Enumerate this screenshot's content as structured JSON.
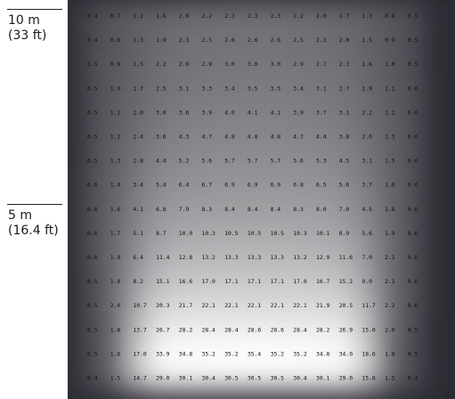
{
  "scale": {
    "top": {
      "metric": "10 m",
      "imperial": "(33 ft)"
    },
    "mid": {
      "metric": "5 m",
      "imperial": "(16.4 ft)"
    }
  },
  "chart_data": {
    "type": "heatmap",
    "rows": [
      [
        0.4,
        0.7,
        1.2,
        1.6,
        2.0,
        2.2,
        2.3,
        2.3,
        2.3,
        2.2,
        2.0,
        1.7,
        1.3,
        0.8,
        0.5
      ],
      [
        0.4,
        0.8,
        1.3,
        1.9,
        2.3,
        2.5,
        2.6,
        2.6,
        2.6,
        2.5,
        2.3,
        2.0,
        1.5,
        0.9,
        0.5
      ],
      [
        0.5,
        0.9,
        1.5,
        2.2,
        2.6,
        2.9,
        3.0,
        3.0,
        3.0,
        2.9,
        2.7,
        2.3,
        1.6,
        1.0,
        0.5
      ],
      [
        0.5,
        1.0,
        1.7,
        2.5,
        3.1,
        3.3,
        3.4,
        3.5,
        3.5,
        3.4,
        3.1,
        2.7,
        1.9,
        1.1,
        0.6
      ],
      [
        0.5,
        1.1,
        2.0,
        3.0,
        3.6,
        3.9,
        4.0,
        4.1,
        4.1,
        3.9,
        3.7,
        3.1,
        2.2,
        1.2,
        0.6
      ],
      [
        0.5,
        1.2,
        2.4,
        3.6,
        4.3,
        4.7,
        4.8,
        4.8,
        4.8,
        4.7,
        4.4,
        3.8,
        2.6,
        1.3,
        0.6
      ],
      [
        0.5,
        1.3,
        2.8,
        4.4,
        5.2,
        5.6,
        5.7,
        5.7,
        5.7,
        5.6,
        5.3,
        4.5,
        3.1,
        1.5,
        0.6
      ],
      [
        0.6,
        1.4,
        3.4,
        5.4,
        6.4,
        6.7,
        6.9,
        6.9,
        6.9,
        6.8,
        6.5,
        5.6,
        3.7,
        1.6,
        0.6
      ],
      [
        0.6,
        1.6,
        4.1,
        6.8,
        7.9,
        8.3,
        8.4,
        8.4,
        8.4,
        8.3,
        8.0,
        7.0,
        4.5,
        1.8,
        0.6
      ],
      [
        0.6,
        1.7,
        5.1,
        8.7,
        10.0,
        10.3,
        10.5,
        10.5,
        10.5,
        10.3,
        10.1,
        8.9,
        5.6,
        1.9,
        0.6
      ],
      [
        0.6,
        1.9,
        6.4,
        11.4,
        12.8,
        13.2,
        13.3,
        13.3,
        13.3,
        13.2,
        12.9,
        11.6,
        7.0,
        2.1,
        0.6
      ],
      [
        0.5,
        1.9,
        8.2,
        15.1,
        16.6,
        17.0,
        17.1,
        17.1,
        17.1,
        17.0,
        16.7,
        15.2,
        9.0,
        2.1,
        0.6
      ],
      [
        0.5,
        2.0,
        10.7,
        20.3,
        21.7,
        22.1,
        22.1,
        22.1,
        22.1,
        22.1,
        21.9,
        20.5,
        11.7,
        2.2,
        0.6
      ],
      [
        0.5,
        1.8,
        13.7,
        26.7,
        28.2,
        28.4,
        28.4,
        28.6,
        28.6,
        28.4,
        28.2,
        26.9,
        15.0,
        2.0,
        0.5
      ],
      [
        0.5,
        1.6,
        17.0,
        33.9,
        34.8,
        35.2,
        35.2,
        35.4,
        35.2,
        35.2,
        34.8,
        34.0,
        18.6,
        1.8,
        0.5
      ],
      [
        0.4,
        1.5,
        14.7,
        29.0,
        30.1,
        30.4,
        30.5,
        30.5,
        30.5,
        30.4,
        30.1,
        29.0,
        15.8,
        1.5,
        0.4
      ]
    ],
    "colormap": [
      "#2b2b33",
      "#ffffff"
    ]
  }
}
